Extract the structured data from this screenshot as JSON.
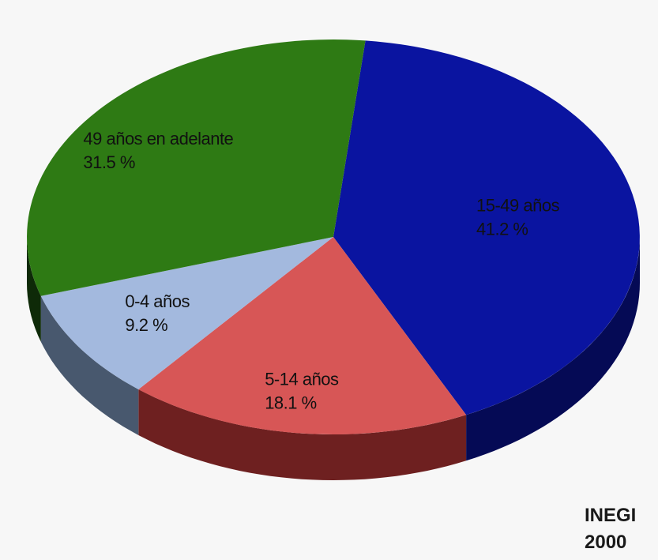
{
  "chart_data": {
    "type": "pie",
    "style": "3d",
    "slices": [
      {
        "label": "15-49 años",
        "value_label": "41.2 %",
        "value": 41.2,
        "color": "#0a14a0",
        "side_color": "#050a55"
      },
      {
        "label": "5-14 años",
        "value_label": "18.1 %",
        "value": 18.1,
        "color": "#d75656",
        "side_color": "#6e2020"
      },
      {
        "label": "0-4 años",
        "value_label": "9.2 %",
        "value": 9.2,
        "color": "#a3b9de",
        "side_color": "#48586e"
      },
      {
        "label": "49 años en adelante",
        "value_label": "31.5 %",
        "value": 31.5,
        "color": "#2e7a14",
        "side_color": "#0e2a08"
      }
    ]
  },
  "source": {
    "org": "INEGI",
    "year": "2000"
  }
}
